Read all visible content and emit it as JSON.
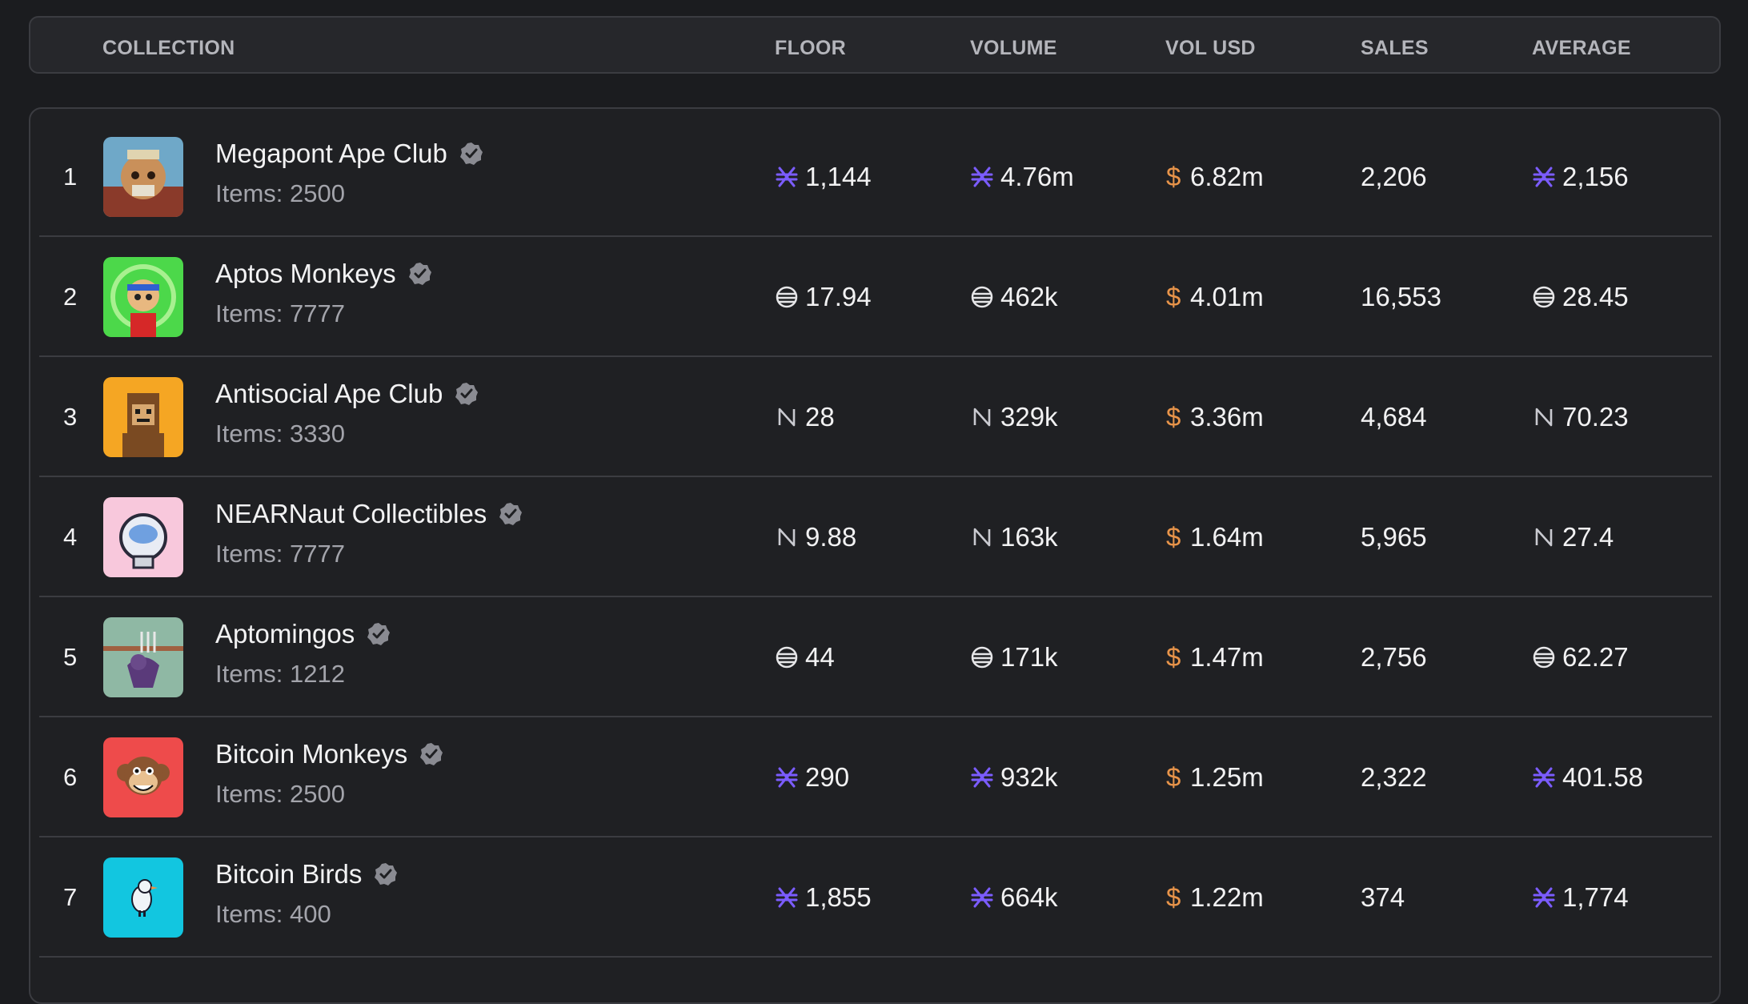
{
  "columns": {
    "collection": "COLLECTION",
    "floor": "FLOOR",
    "volume": "VOLUME",
    "vol_usd": "VOL USD",
    "sales": "SALES",
    "average": "AVERAGE"
  },
  "colors": {
    "usd_accent": "#e8944a",
    "stacks_icon": "#7b5cff",
    "verified_badge": "#8a8b92"
  },
  "rows": [
    {
      "rank": "1",
      "name": "Megapont Ape Club",
      "items": "Items: 2500",
      "currency_icon": "stacks-icon",
      "floor": "1,144",
      "volume": "4.76m",
      "usd_symbol": "$",
      "vol_usd": "6.82m",
      "sales": "2,206",
      "average": "2,156",
      "avatar_icon": "ape-avatar-icon"
    },
    {
      "rank": "2",
      "name": "Aptos Monkeys",
      "items": "Items: 7777",
      "currency_icon": "aptos-icon",
      "floor": "17.94",
      "volume": "462k",
      "usd_symbol": "$",
      "vol_usd": "4.01m",
      "sales": "16,553",
      "average": "28.45",
      "avatar_icon": "monkey-avatar-icon"
    },
    {
      "rank": "3",
      "name": "Antisocial Ape Club",
      "items": "Items: 3330",
      "currency_icon": "near-icon",
      "floor": "28",
      "volume": "329k",
      "usd_symbol": "$",
      "vol_usd": "3.36m",
      "sales": "4,684",
      "average": "70.23",
      "avatar_icon": "pixel-ape-avatar-icon"
    },
    {
      "rank": "4",
      "name": "NEARNaut Collectibles",
      "items": "Items: 7777",
      "currency_icon": "near-icon",
      "floor": "9.88",
      "volume": "163k",
      "usd_symbol": "$",
      "vol_usd": "1.64m",
      "sales": "5,965",
      "average": "27.4",
      "avatar_icon": "astronaut-avatar-icon"
    },
    {
      "rank": "5",
      "name": "Aptomingos",
      "items": "Items: 1212",
      "currency_icon": "aptos-icon",
      "floor": "44",
      "volume": "171k",
      "usd_symbol": "$",
      "vol_usd": "1.47m",
      "sales": "2,756",
      "average": "62.27",
      "avatar_icon": "flamingo-avatar-icon"
    },
    {
      "rank": "6",
      "name": "Bitcoin Monkeys",
      "items": "Items: 2500",
      "currency_icon": "stacks-icon",
      "floor": "290",
      "volume": "932k",
      "usd_symbol": "$",
      "vol_usd": "1.25m",
      "sales": "2,322",
      "average": "401.58",
      "avatar_icon": "bitcoin-monkey-avatar-icon"
    },
    {
      "rank": "7",
      "name": "Bitcoin Birds",
      "items": "Items: 400",
      "currency_icon": "stacks-icon",
      "floor": "1,855",
      "volume": "664k",
      "usd_symbol": "$",
      "vol_usd": "1.22m",
      "sales": "374",
      "average": "1,774",
      "avatar_icon": "bird-avatar-icon"
    }
  ]
}
